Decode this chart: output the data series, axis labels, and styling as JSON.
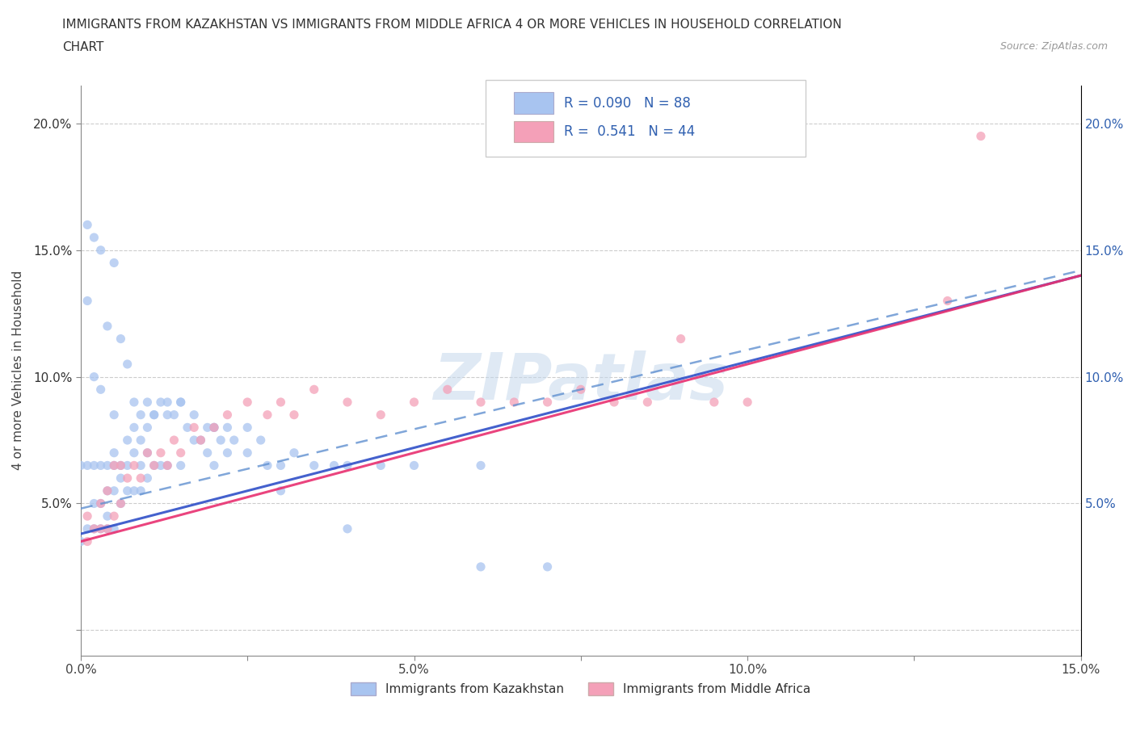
{
  "title_line1": "IMMIGRANTS FROM KAZAKHSTAN VS IMMIGRANTS FROM MIDDLE AFRICA 4 OR MORE VEHICLES IN HOUSEHOLD CORRELATION",
  "title_line2": "CHART",
  "source_text": "Source: ZipAtlas.com",
  "ylabel": "4 or more Vehicles in Household",
  "xlim": [
    0.0,
    0.15
  ],
  "ylim": [
    -0.01,
    0.215
  ],
  "xticks": [
    0.0,
    0.025,
    0.05,
    0.075,
    0.1,
    0.125,
    0.15
  ],
  "xticklabels": [
    "0.0%",
    "",
    "5.0%",
    "",
    "10.0%",
    "",
    "15.0%"
  ],
  "yticks": [
    0.0,
    0.05,
    0.1,
    0.15,
    0.2
  ],
  "yticklabels_left": [
    "",
    "5.0%",
    "10.0%",
    "15.0%",
    "20.0%"
  ],
  "yticklabels_right": [
    "",
    "5.0%",
    "10.0%",
    "15.0%",
    "20.0%"
  ],
  "legend_label1": "Immigrants from Kazakhstan",
  "legend_label2": "Immigrants from Middle Africa",
  "R1": "0.090",
  "N1": "88",
  "R2": "0.541",
  "N2": "44",
  "color_kaz": "#a8c4f0",
  "color_mid": "#f4a0b8",
  "line_color_kaz_solid": "#3050c8",
  "line_color_kaz_dash": "#6090d0",
  "line_color_mid": "#e83070",
  "watermark": "ZIPatlas",
  "background_color": "#ffffff",
  "tick_color_left": "#333333",
  "tick_color_right": "#3060b0",
  "legend_R_N_color": "#3060b0",
  "kaz_x": [
    0.001,
    0.001,
    0.002,
    0.002,
    0.002,
    0.003,
    0.003,
    0.003,
    0.004,
    0.004,
    0.004,
    0.004,
    0.005,
    0.005,
    0.005,
    0.005,
    0.006,
    0.006,
    0.006,
    0.007,
    0.007,
    0.007,
    0.008,
    0.008,
    0.008,
    0.009,
    0.009,
    0.009,
    0.01,
    0.01,
    0.01,
    0.011,
    0.011,
    0.012,
    0.012,
    0.013,
    0.013,
    0.014,
    0.015,
    0.015,
    0.016,
    0.017,
    0.018,
    0.019,
    0.02,
    0.02,
    0.021,
    0.022,
    0.023,
    0.025,
    0.027,
    0.028,
    0.03,
    0.032,
    0.035,
    0.038,
    0.04,
    0.045,
    0.05,
    0.06,
    0.0,
    0.0,
    0.001,
    0.001,
    0.002,
    0.002,
    0.003,
    0.003,
    0.004,
    0.005,
    0.005,
    0.006,
    0.007,
    0.008,
    0.009,
    0.01,
    0.011,
    0.013,
    0.015,
    0.017,
    0.019,
    0.02,
    0.022,
    0.025,
    0.03,
    0.04,
    0.06,
    0.07
  ],
  "kaz_y": [
    0.065,
    0.04,
    0.065,
    0.05,
    0.04,
    0.065,
    0.05,
    0.04,
    0.065,
    0.055,
    0.045,
    0.04,
    0.07,
    0.065,
    0.055,
    0.04,
    0.065,
    0.06,
    0.05,
    0.075,
    0.065,
    0.055,
    0.08,
    0.07,
    0.055,
    0.075,
    0.065,
    0.055,
    0.08,
    0.07,
    0.06,
    0.085,
    0.065,
    0.09,
    0.065,
    0.09,
    0.065,
    0.085,
    0.09,
    0.065,
    0.08,
    0.075,
    0.075,
    0.07,
    0.08,
    0.065,
    0.075,
    0.07,
    0.075,
    0.08,
    0.075,
    0.065,
    0.065,
    0.07,
    0.065,
    0.065,
    0.065,
    0.065,
    0.065,
    0.065,
    0.065,
    0.035,
    0.16,
    0.13,
    0.155,
    0.1,
    0.15,
    0.095,
    0.12,
    0.145,
    0.085,
    0.115,
    0.105,
    0.09,
    0.085,
    0.09,
    0.085,
    0.085,
    0.09,
    0.085,
    0.08,
    0.08,
    0.08,
    0.07,
    0.055,
    0.04,
    0.025,
    0.025
  ],
  "mid_x": [
    0.001,
    0.001,
    0.002,
    0.003,
    0.003,
    0.004,
    0.004,
    0.005,
    0.005,
    0.006,
    0.006,
    0.007,
    0.008,
    0.009,
    0.01,
    0.011,
    0.012,
    0.013,
    0.014,
    0.015,
    0.017,
    0.018,
    0.02,
    0.022,
    0.025,
    0.028,
    0.03,
    0.032,
    0.035,
    0.04,
    0.045,
    0.05,
    0.055,
    0.06,
    0.065,
    0.07,
    0.075,
    0.08,
    0.085,
    0.09,
    0.095,
    0.1,
    0.13,
    0.135
  ],
  "mid_y": [
    0.035,
    0.045,
    0.04,
    0.05,
    0.04,
    0.055,
    0.04,
    0.065,
    0.045,
    0.065,
    0.05,
    0.06,
    0.065,
    0.06,
    0.07,
    0.065,
    0.07,
    0.065,
    0.075,
    0.07,
    0.08,
    0.075,
    0.08,
    0.085,
    0.09,
    0.085,
    0.09,
    0.085,
    0.095,
    0.09,
    0.085,
    0.09,
    0.095,
    0.09,
    0.09,
    0.09,
    0.095,
    0.09,
    0.09,
    0.115,
    0.09,
    0.09,
    0.13,
    0.195
  ],
  "kaz_trend_x": [
    0.0,
    0.15
  ],
  "kaz_trend_y": [
    0.038,
    0.14
  ],
  "mid_trend_x": [
    0.0,
    0.15
  ],
  "mid_trend_y": [
    0.035,
    0.14
  ]
}
